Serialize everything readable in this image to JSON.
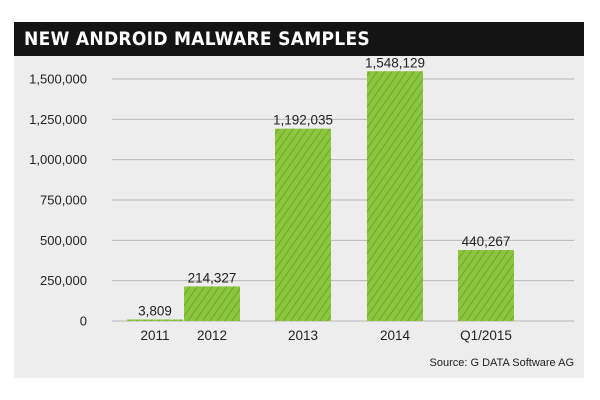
{
  "title": "NEW ANDROID MALWARE SAMPLES",
  "source": "Source: G DATA Software AG",
  "colors": {
    "bar": "#8cc63f",
    "bar_dark": "#6fa52c",
    "title_bg": "#141414",
    "panel_bg": "#ededee",
    "grid": "#b8b8b8"
  },
  "chart_data": {
    "type": "bar",
    "title": "NEW ANDROID MALWARE SAMPLES",
    "xlabel": "",
    "ylabel": "",
    "categories": [
      "2011",
      "2012",
      "2013",
      "2014",
      "Q1/2015"
    ],
    "values": [
      3809,
      214327,
      1192035,
      1548129,
      440267
    ],
    "value_labels": [
      "3,809",
      "214,327",
      "1,192,035",
      "1,548,129",
      "440,267"
    ],
    "y_ticks": [
      0,
      250000,
      500000,
      750000,
      1000000,
      1250000,
      1500000
    ],
    "y_tick_labels": [
      "0",
      "250,000",
      "500,000",
      "750,000",
      "1,000,000",
      "1,250,000",
      "1,500,000"
    ],
    "ylim": [
      0,
      1550000
    ],
    "grid": true,
    "legend": "none"
  }
}
